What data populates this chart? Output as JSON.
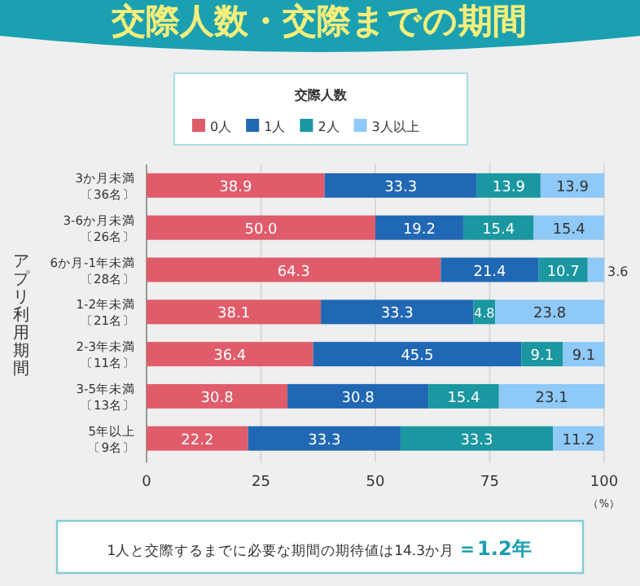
{
  "chart_data": {
    "type": "bar",
    "orientation": "horizontal",
    "stacked": true,
    "title": "交際人数・交際までの期間",
    "legend_title": "交際人数",
    "legend": "top",
    "ylabel": "アプリ利用期間",
    "xlabel": "（%）",
    "categories": [
      "3か月未満〔36名〕",
      "3-6か月未満〔26名〕",
      "6か月-1年未満〔28名〕",
      "1-2年未満〔21名〕",
      "2-3年未満〔11名〕",
      "3-5年未満〔13名〕",
      "5年以上〔9名〕"
    ],
    "series": [
      {
        "name": "0人",
        "color": "#e05c6b",
        "values": [
          38.9,
          50.0,
          64.3,
          38.1,
          36.4,
          30.8,
          22.2
        ],
        "value_labels": [
          "38.9",
          "50.0",
          "64.3",
          "38.1",
          "36.4",
          "30.8",
          "22.2"
        ]
      },
      {
        "name": "1人",
        "color": "#2168b4",
        "values": [
          33.3,
          19.2,
          21.4,
          33.3,
          45.5,
          30.8,
          33.3
        ],
        "value_labels": [
          "33.3",
          "19.2",
          "21.4",
          "33.3",
          "45.5",
          "30.8",
          "33.3"
        ]
      },
      {
        "name": "2人",
        "color": "#1a97a0",
        "values": [
          13.9,
          15.4,
          10.7,
          4.8,
          9.1,
          15.4,
          33.3
        ],
        "value_labels": [
          "13.9",
          "15.4",
          "10.7",
          "4.8",
          "9.1",
          "15.4",
          "33.3"
        ]
      },
      {
        "name": "3人以上",
        "color": "#8ec9f7",
        "values": [
          13.9,
          15.4,
          3.6,
          23.8,
          9.1,
          23.1,
          11.2
        ],
        "value_labels": [
          "13.9",
          "15.4",
          "3.6",
          "23.8",
          "9.1",
          "23.1",
          "11.2"
        ]
      }
    ],
    "xlim": [
      0,
      100
    ],
    "xticks": [
      0,
      25,
      50,
      75,
      100
    ],
    "grid": "x",
    "annotations": [
      "1人と交際するまでに必要な期間の期待値は14.3か月",
      "＝1.2年"
    ]
  }
}
